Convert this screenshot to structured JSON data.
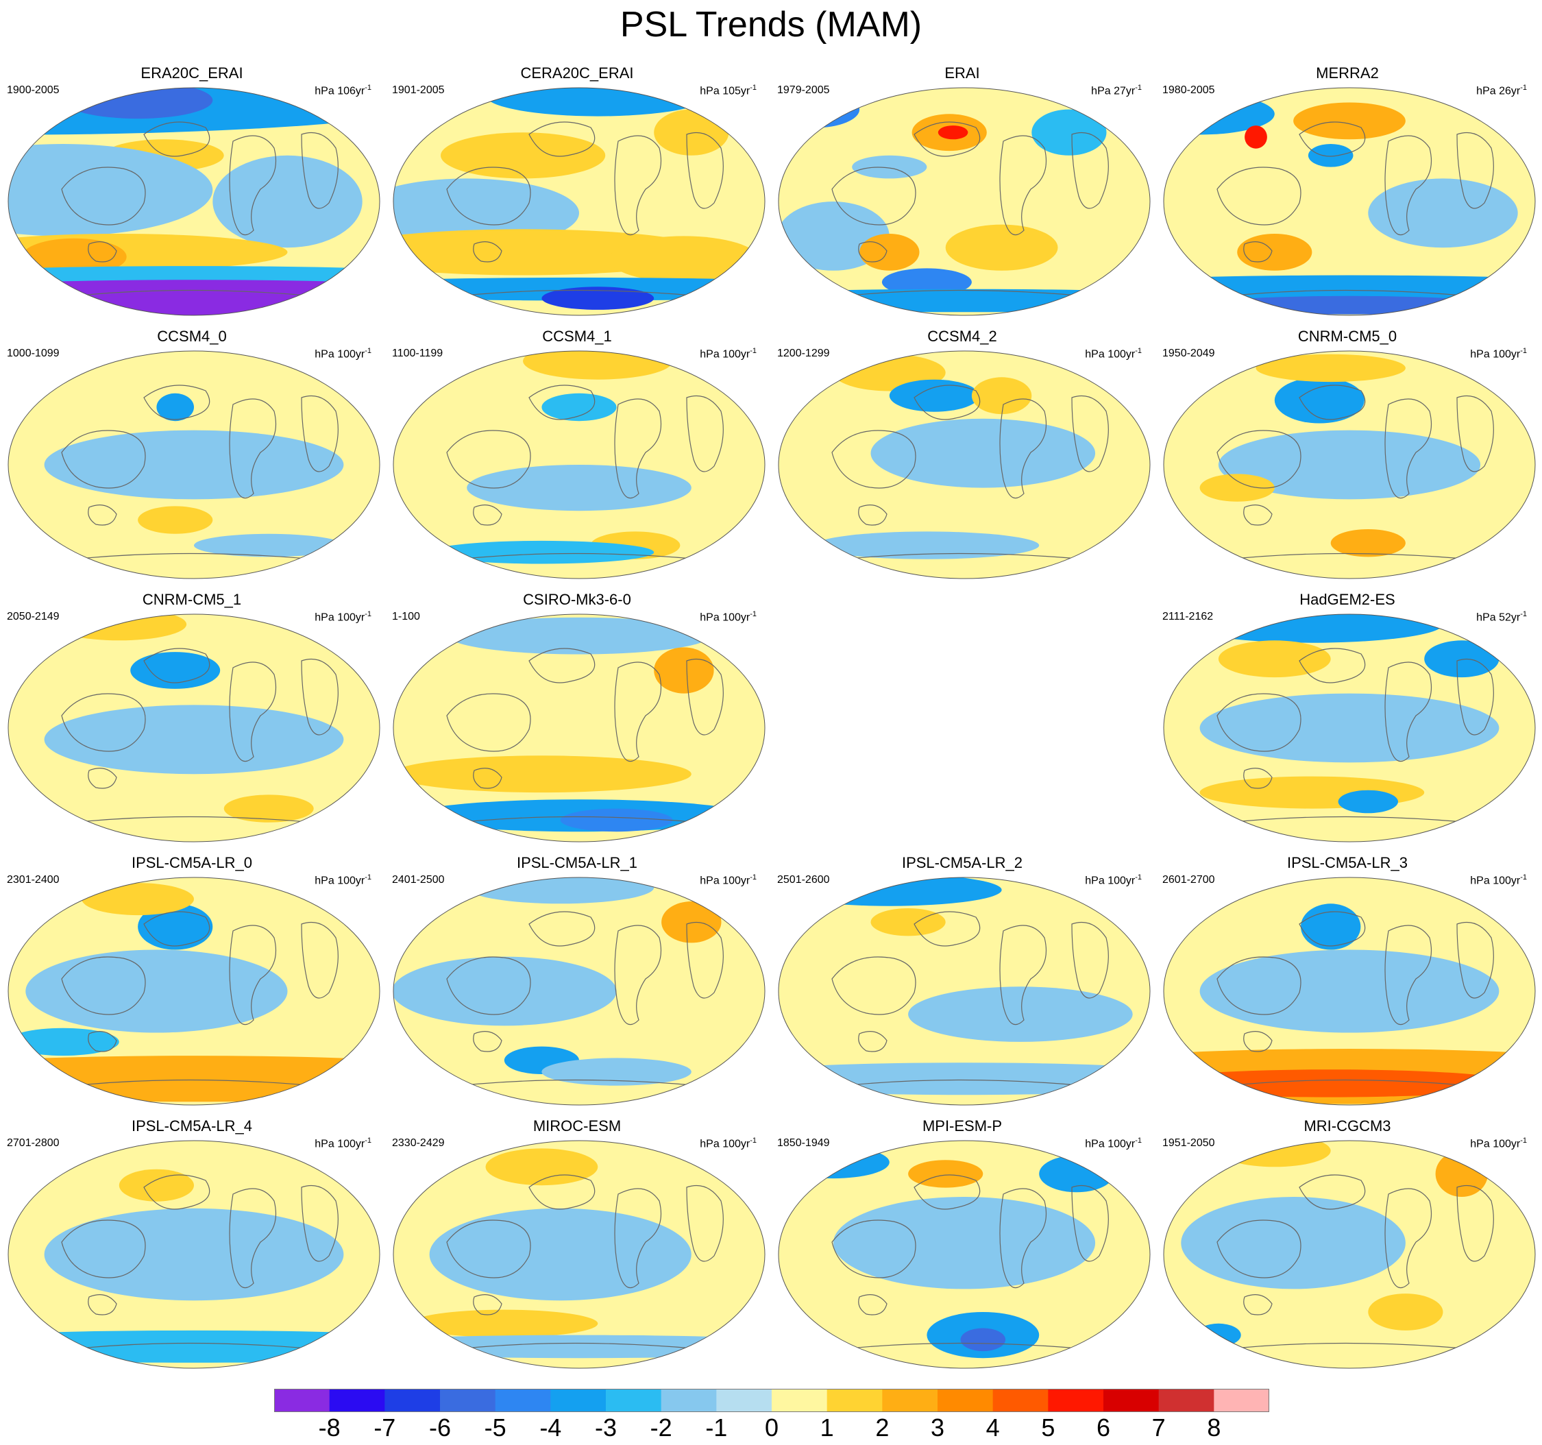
{
  "title": "PSL Trends (MAM)",
  "colorbar": {
    "labels": [
      "-8",
      "-7",
      "-6",
      "-5",
      "-4",
      "-3",
      "-2",
      "-1",
      "0",
      "1",
      "2",
      "3",
      "4",
      "5",
      "6",
      "7",
      "8"
    ],
    "colors": [
      "#8a2be2",
      "#2b0bf2",
      "#1e3ee6",
      "#3a6ce0",
      "#2e86f2",
      "#14a0f0",
      "#2bbcf2",
      "#86c8ee",
      "#b6def0",
      "#fff7a0",
      "#ffd332",
      "#ffae14",
      "#ff8a00",
      "#ff5a00",
      "#ff1800",
      "#d80000",
      "#d03030",
      "#ffb4b4"
    ]
  },
  "panels": [
    {
      "title": "ERA20C_ERAI",
      "years": "1900-2005",
      "units_prefix": "hPa ",
      "units_num": "106",
      "units_sup": "-1",
      "variant": 0
    },
    {
      "title": "CERA20C_ERAI",
      "years": "1901-2005",
      "units_prefix": "hPa ",
      "units_num": "105",
      "units_sup": "-1",
      "variant": 1
    },
    {
      "title": "ERAI",
      "years": "1979-2005",
      "units_prefix": "hPa ",
      "units_num": "27",
      "units_sup": "-1",
      "variant": 2
    },
    {
      "title": "MERRA2",
      "years": "1980-2005",
      "units_prefix": "hPa ",
      "units_num": "26",
      "units_sup": "-1",
      "variant": 3
    },
    {
      "title": "CCSM4_0",
      "years": "1000-1099",
      "units_prefix": "hPa ",
      "units_num": "100",
      "units_sup": "-1",
      "variant": 4
    },
    {
      "title": "CCSM4_1",
      "years": "1100-1199",
      "units_prefix": "hPa ",
      "units_num": "100",
      "units_sup": "-1",
      "variant": 5
    },
    {
      "title": "CCSM4_2",
      "years": "1200-1299",
      "units_prefix": "hPa ",
      "units_num": "100",
      "units_sup": "-1",
      "variant": 6
    },
    {
      "title": "CNRM-CM5_0",
      "years": "1950-2049",
      "units_prefix": "hPa ",
      "units_num": "100",
      "units_sup": "-1",
      "variant": 7
    },
    {
      "title": "CNRM-CM5_1",
      "years": "2050-2149",
      "units_prefix": "hPa ",
      "units_num": "100",
      "units_sup": "-1",
      "variant": 8
    },
    {
      "title": "CSIRO-Mk3-6-0",
      "years": "1-100",
      "units_prefix": "hPa ",
      "units_num": "100",
      "units_sup": "-1",
      "variant": 9
    },
    {
      "title": "HadGEM2-ES",
      "years": "2111-2162",
      "units_prefix": "hPa ",
      "units_num": "52",
      "units_sup": "-1",
      "variant": 10
    },
    {
      "title": "IPSL-CM5A-LR_0",
      "years": "2301-2400",
      "units_prefix": "hPa ",
      "units_num": "100",
      "units_sup": "-1",
      "variant": 11
    },
    {
      "title": "IPSL-CM5A-LR_1",
      "years": "2401-2500",
      "units_prefix": "hPa ",
      "units_num": "100",
      "units_sup": "-1",
      "variant": 12
    },
    {
      "title": "IPSL-CM5A-LR_2",
      "years": "2501-2600",
      "units_prefix": "hPa ",
      "units_num": "100",
      "units_sup": "-1",
      "variant": 13
    },
    {
      "title": "IPSL-CM5A-LR_3",
      "years": "2601-2700",
      "units_prefix": "hPa ",
      "units_num": "100",
      "units_sup": "-1",
      "variant": 14
    },
    {
      "title": "IPSL-CM5A-LR_4",
      "years": "2701-2800",
      "units_prefix": "hPa ",
      "units_num": "100",
      "units_sup": "-1",
      "variant": 15
    },
    {
      "title": "MIROC-ESM",
      "years": "2330-2429",
      "units_prefix": "hPa ",
      "units_num": "100",
      "units_sup": "-1",
      "variant": 16
    },
    {
      "title": "MPI-ESM-P",
      "years": "1850-1949",
      "units_prefix": "hPa ",
      "units_num": "100",
      "units_sup": "-1",
      "variant": 17
    },
    {
      "title": "MRI-CGCM3",
      "years": "1951-2050",
      "units_prefix": "hPa ",
      "units_num": "100",
      "units_sup": "-1",
      "variant": 18
    }
  ]
}
